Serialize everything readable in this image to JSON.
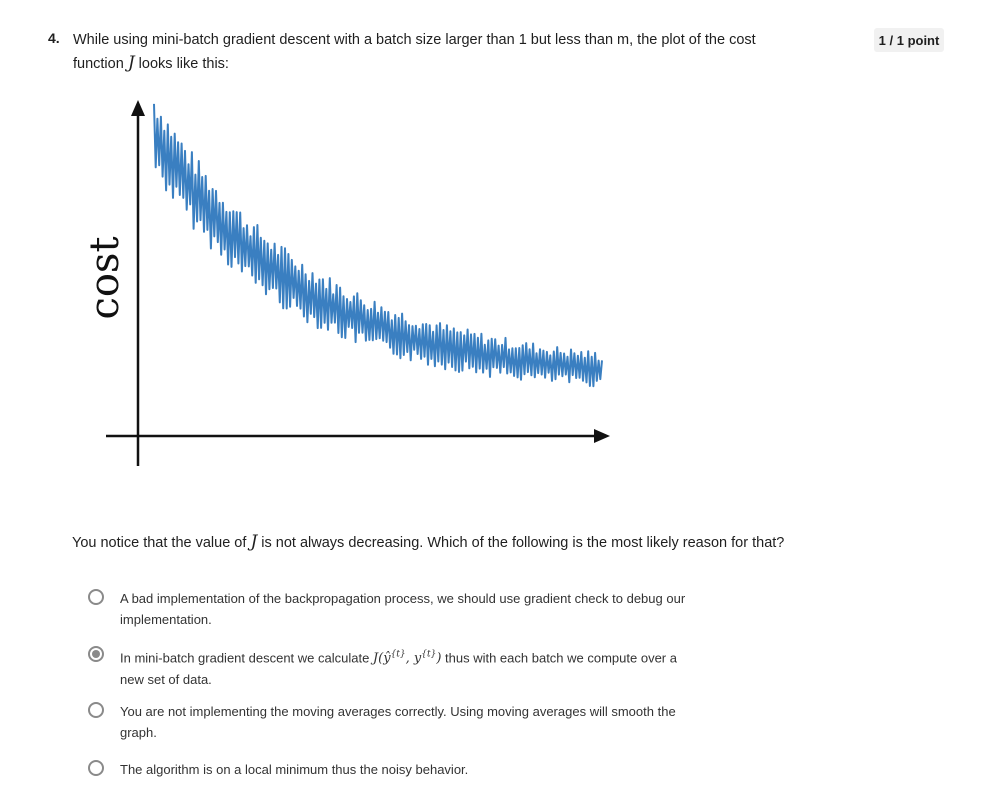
{
  "question": {
    "number": "4.",
    "text_part1": "While using mini-batch gradient descent with a batch size larger than 1 but less than m, the plot of the cost",
    "text_part2_before": "function ",
    "text_math": "J",
    "text_part2_after": " looks like this:",
    "score": "1 / 1 point"
  },
  "chart_data": {
    "type": "line",
    "ylabel": "cost",
    "xlabel": "",
    "title": "",
    "line_color": "#3a7fc1",
    "axis_color": "#111111",
    "grid": false,
    "description_points": [
      [
        0.05,
        0.9
      ],
      [
        0.06,
        0.8
      ],
      [
        0.07,
        0.95
      ],
      [
        0.08,
        0.78
      ],
      [
        0.09,
        0.92
      ],
      [
        0.1,
        0.72
      ],
      [
        0.11,
        0.88
      ],
      [
        0.12,
        0.7
      ],
      [
        0.13,
        0.86
      ],
      [
        0.14,
        0.66
      ],
      [
        0.15,
        0.82
      ],
      [
        0.16,
        0.62
      ],
      [
        0.17,
        0.78
      ],
      [
        0.18,
        0.58
      ],
      [
        0.19,
        0.74
      ],
      [
        0.2,
        0.56
      ],
      [
        0.21,
        0.7
      ],
      [
        0.22,
        0.52
      ],
      [
        0.23,
        0.66
      ],
      [
        0.24,
        0.5
      ],
      [
        0.25,
        0.62
      ],
      [
        0.26,
        0.48
      ],
      [
        0.27,
        0.6
      ],
      [
        0.28,
        0.44
      ],
      [
        0.29,
        0.58
      ],
      [
        0.3,
        0.38
      ],
      [
        0.31,
        0.52
      ],
      [
        0.32,
        0.36
      ],
      [
        0.33,
        0.5
      ],
      [
        0.34,
        0.34
      ],
      [
        0.35,
        0.48
      ],
      [
        0.36,
        0.32
      ],
      [
        0.37,
        0.46
      ],
      [
        0.38,
        0.3
      ],
      [
        0.39,
        0.44
      ],
      [
        0.4,
        0.3
      ],
      [
        0.41,
        0.42
      ],
      [
        0.42,
        0.28
      ],
      [
        0.43,
        0.4
      ],
      [
        0.44,
        0.26
      ],
      [
        0.45,
        0.38
      ],
      [
        0.46,
        0.24
      ],
      [
        0.47,
        0.36
      ],
      [
        0.48,
        0.22
      ],
      [
        0.49,
        0.34
      ],
      [
        0.5,
        0.2
      ],
      [
        0.51,
        0.3
      ],
      [
        0.52,
        0.18
      ],
      [
        0.53,
        0.28
      ],
      [
        0.54,
        0.16
      ],
      [
        0.55,
        0.26
      ],
      [
        0.56,
        0.14
      ],
      [
        0.57,
        0.24
      ],
      [
        0.58,
        0.13
      ],
      [
        0.59,
        0.22
      ],
      [
        0.6,
        0.12
      ],
      [
        0.61,
        0.2
      ],
      [
        0.62,
        0.11
      ],
      [
        0.63,
        0.19
      ],
      [
        0.64,
        0.1
      ],
      [
        0.65,
        0.18
      ],
      [
        0.66,
        0.1
      ],
      [
        0.67,
        0.17
      ],
      [
        0.68,
        0.09
      ],
      [
        0.69,
        0.16
      ],
      [
        0.7,
        0.09
      ],
      [
        0.71,
        0.15
      ],
      [
        0.72,
        0.09
      ],
      [
        0.73,
        0.14
      ],
      [
        0.74,
        0.09
      ],
      [
        0.75,
        0.13
      ],
      [
        0.76,
        0.1
      ],
      [
        0.77,
        0.12
      ],
      [
        0.78,
        0.1
      ]
    ]
  },
  "prompt": {
    "before": "You notice that the value of ",
    "math": "J",
    "after": " is not always decreasing. Which of the following is the most likely reason for that?"
  },
  "options": [
    {
      "label": "A bad implementation of the backpropagation process, we should use gradient check to debug our implementation.",
      "checked": false
    },
    {
      "label_before": "In mini-batch gradient descent we calculate ",
      "label_math": "J(ŷ",
      "label_math_sup1": "{t}",
      "label_math_mid": ", y",
      "label_math_sup2": "{t}",
      "label_math_end": ")",
      "label_after": " thus with each batch we compute over a new set of data.",
      "checked": true
    },
    {
      "label": "You are not implementing the moving averages correctly. Using moving averages will smooth the graph.",
      "checked": false
    },
    {
      "label": "The algorithm is on a local minimum thus the noisy behavior.",
      "checked": false
    }
  ]
}
